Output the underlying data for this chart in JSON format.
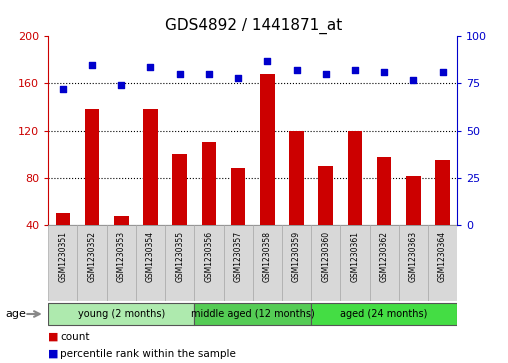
{
  "title": "GDS4892 / 1441871_at",
  "samples": [
    "GSM1230351",
    "GSM1230352",
    "GSM1230353",
    "GSM1230354",
    "GSM1230355",
    "GSM1230356",
    "GSM1230357",
    "GSM1230358",
    "GSM1230359",
    "GSM1230360",
    "GSM1230361",
    "GSM1230362",
    "GSM1230363",
    "GSM1230364"
  ],
  "counts": [
    50,
    138,
    48,
    138,
    100,
    110,
    88,
    168,
    120,
    90,
    120,
    98,
    82,
    95
  ],
  "percentiles": [
    72,
    85,
    74,
    84,
    80,
    80,
    78,
    87,
    82,
    80,
    82,
    81,
    77,
    81
  ],
  "groups": [
    {
      "label": "young (2 months)",
      "start": 0,
      "end": 4,
      "color": "#AEEAAE"
    },
    {
      "label": "middle aged (12 months)",
      "start": 5,
      "end": 8,
      "color": "#55CC55"
    },
    {
      "label": "aged (24 months)",
      "start": 9,
      "end": 13,
      "color": "#44DD44"
    }
  ],
  "ylim_left": [
    40,
    200
  ],
  "ylim_right": [
    0,
    100
  ],
  "yticks_left": [
    40,
    80,
    120,
    160,
    200
  ],
  "yticks_right": [
    0,
    25,
    50,
    75,
    100
  ],
  "bar_color": "#CC0000",
  "dot_color": "#0000CC",
  "bg_color": "#FFFFFF",
  "left_tick_color": "#CC0000",
  "right_tick_color": "#0000CC",
  "title_fontsize": 11,
  "sample_label_fontsize": 5.5,
  "group_label_fontsize": 7
}
